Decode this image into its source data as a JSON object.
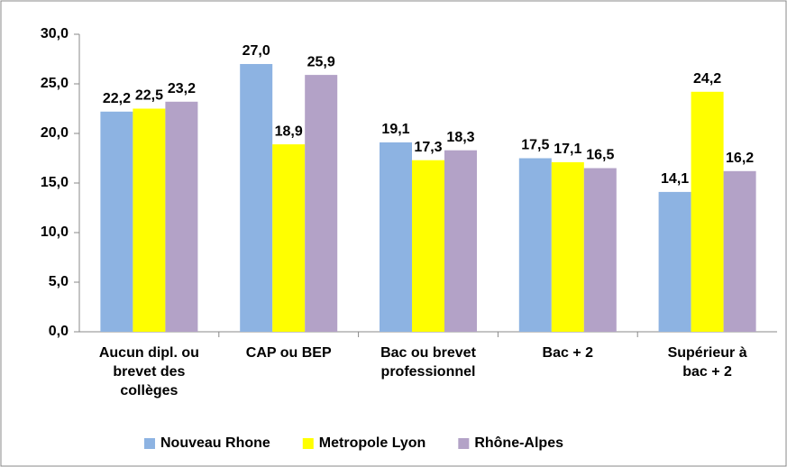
{
  "chart_data": {
    "type": "bar",
    "categories": [
      "Aucun dipl. ou\nbrevet des\ncollèges",
      "CAP ou BEP",
      "Bac ou brevet\nprofessionnel",
      "Bac + 2",
      "Supérieur à\nbac + 2"
    ],
    "series": [
      {
        "name": "Nouveau Rhone",
        "color": "#8db3e2",
        "values": [
          22.2,
          27.0,
          19.1,
          17.5,
          14.1
        ],
        "value_labels": [
          "22,2",
          "27,0",
          "19,1",
          "17,5",
          "14,1"
        ]
      },
      {
        "name": "Metropole Lyon",
        "color": "#ffff00",
        "values": [
          22.5,
          18.9,
          17.3,
          17.1,
          24.2
        ],
        "value_labels": [
          "22,5",
          "18,9",
          "17,3",
          "17,1",
          "24,2"
        ]
      },
      {
        "name": "Rhône-Alpes",
        "color": "#b3a2c7",
        "values": [
          23.2,
          25.9,
          18.3,
          16.5,
          16.2
        ],
        "value_labels": [
          "23,2",
          "25,9",
          "18,3",
          "16,5",
          "16,2"
        ]
      }
    ],
    "ylim": [
      0,
      30
    ],
    "yticks": [
      {
        "value": 0,
        "label": "0,0"
      },
      {
        "value": 5,
        "label": "5,0"
      },
      {
        "value": 10,
        "label": "10,0"
      },
      {
        "value": 15,
        "label": "15,0"
      },
      {
        "value": 20,
        "label": "20,0"
      },
      {
        "value": 25,
        "label": "25,0"
      },
      {
        "value": 30,
        "label": "30,0"
      }
    ],
    "legend": "bottom"
  }
}
